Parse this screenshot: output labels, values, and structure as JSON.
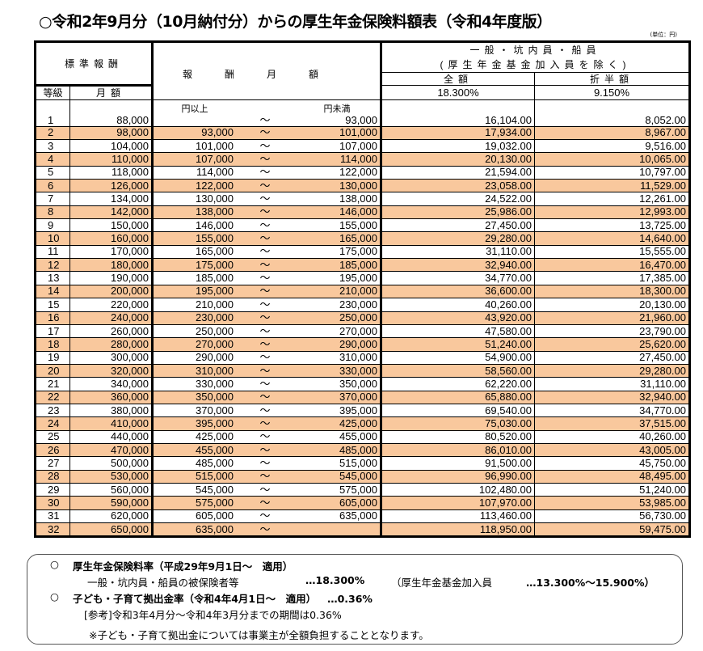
{
  "title": "○令和2年9月分（10月納付分）からの厚生年金保険料額表（令和4年度版）",
  "unit": "(単位：円)",
  "header": {
    "standard": "標準報酬",
    "range": "報酬月額",
    "group_line1": "一般・坑内員・船員",
    "group_line2": "(厚生年金基金加入員を除く)",
    "full": "全額",
    "half": "折半額",
    "grade": "等級",
    "monthly": "月額",
    "full_rate": "18.300%",
    "half_rate": "9.150%",
    "lower_unit": "円以上",
    "upper_unit": "円未満",
    "tilde": "～"
  },
  "rows": [
    [
      "1",
      "88,000",
      "",
      "93,000",
      "16,104.00",
      "8,052.00"
    ],
    [
      "2",
      "98,000",
      "93,000",
      "101,000",
      "17,934.00",
      "8,967.00"
    ],
    [
      "3",
      "104,000",
      "101,000",
      "107,000",
      "19,032.00",
      "9,516.00"
    ],
    [
      "4",
      "110,000",
      "107,000",
      "114,000",
      "20,130.00",
      "10,065.00"
    ],
    [
      "5",
      "118,000",
      "114,000",
      "122,000",
      "21,594.00",
      "10,797.00"
    ],
    [
      "6",
      "126,000",
      "122,000",
      "130,000",
      "23,058.00",
      "11,529.00"
    ],
    [
      "7",
      "134,000",
      "130,000",
      "138,000",
      "24,522.00",
      "12,261.00"
    ],
    [
      "8",
      "142,000",
      "138,000",
      "146,000",
      "25,986.00",
      "12,993.00"
    ],
    [
      "9",
      "150,000",
      "146,000",
      "155,000",
      "27,450.00",
      "13,725.00"
    ],
    [
      "10",
      "160,000",
      "155,000",
      "165,000",
      "29,280.00",
      "14,640.00"
    ],
    [
      "11",
      "170,000",
      "165,000",
      "175,000",
      "31,110.00",
      "15,555.00"
    ],
    [
      "12",
      "180,000",
      "175,000",
      "185,000",
      "32,940.00",
      "16,470.00"
    ],
    [
      "13",
      "190,000",
      "185,000",
      "195,000",
      "34,770.00",
      "17,385.00"
    ],
    [
      "14",
      "200,000",
      "195,000",
      "210,000",
      "36,600.00",
      "18,300.00"
    ],
    [
      "15",
      "220,000",
      "210,000",
      "230,000",
      "40,260.00",
      "20,130.00"
    ],
    [
      "16",
      "240,000",
      "230,000",
      "250,000",
      "43,920.00",
      "21,960.00"
    ],
    [
      "17",
      "260,000",
      "250,000",
      "270,000",
      "47,580.00",
      "23,790.00"
    ],
    [
      "18",
      "280,000",
      "270,000",
      "290,000",
      "51,240.00",
      "25,620.00"
    ],
    [
      "19",
      "300,000",
      "290,000",
      "310,000",
      "54,900.00",
      "27,450.00"
    ],
    [
      "20",
      "320,000",
      "310,000",
      "330,000",
      "58,560.00",
      "29,280.00"
    ],
    [
      "21",
      "340,000",
      "330,000",
      "350,000",
      "62,220.00",
      "31,110.00"
    ],
    [
      "22",
      "360,000",
      "350,000",
      "370,000",
      "65,880.00",
      "32,940.00"
    ],
    [
      "23",
      "380,000",
      "370,000",
      "395,000",
      "69,540.00",
      "34,770.00"
    ],
    [
      "24",
      "410,000",
      "395,000",
      "425,000",
      "75,030.00",
      "37,515.00"
    ],
    [
      "25",
      "440,000",
      "425,000",
      "455,000",
      "80,520.00",
      "40,260.00"
    ],
    [
      "26",
      "470,000",
      "455,000",
      "485,000",
      "86,010.00",
      "43,005.00"
    ],
    [
      "27",
      "500,000",
      "485,000",
      "515,000",
      "91,500.00",
      "45,750.00"
    ],
    [
      "28",
      "530,000",
      "515,000",
      "545,000",
      "96,990.00",
      "48,495.00"
    ],
    [
      "29",
      "560,000",
      "545,000",
      "575,000",
      "102,480.00",
      "51,240.00"
    ],
    [
      "30",
      "590,000",
      "575,000",
      "605,000",
      "107,970.00",
      "53,985.00"
    ],
    [
      "31",
      "620,000",
      "605,000",
      "635,000",
      "113,460.00",
      "56,730.00"
    ],
    [
      "32",
      "650,000",
      "635,000",
      "",
      "118,950.00",
      "59,475.00"
    ]
  ],
  "colors": {
    "alt_row": "#f9c89d"
  },
  "notes": {
    "n1_mark": "○",
    "n1_title": "厚生年金保険料率（平成29年9月1日～　適用）",
    "n1_line_label": "一般・坑内員・船員の被保険者等",
    "n1_line_value": "…18.300%",
    "n1_fund_label": "（厚生年金基金加入員",
    "n1_fund_value": "…13.300%～15.900%）",
    "n2_mark": "○",
    "n2_title": "子ども・子育て拠出金率（令和4年4月1日～　適用）",
    "n2_value": "…0.36%",
    "n2_ref": "[参考]令和3年4月分～令和4年3月分までの期間は0.36%",
    "n3": "※子ども・子育て拠出金については事業主が全額負担することとなります。"
  }
}
